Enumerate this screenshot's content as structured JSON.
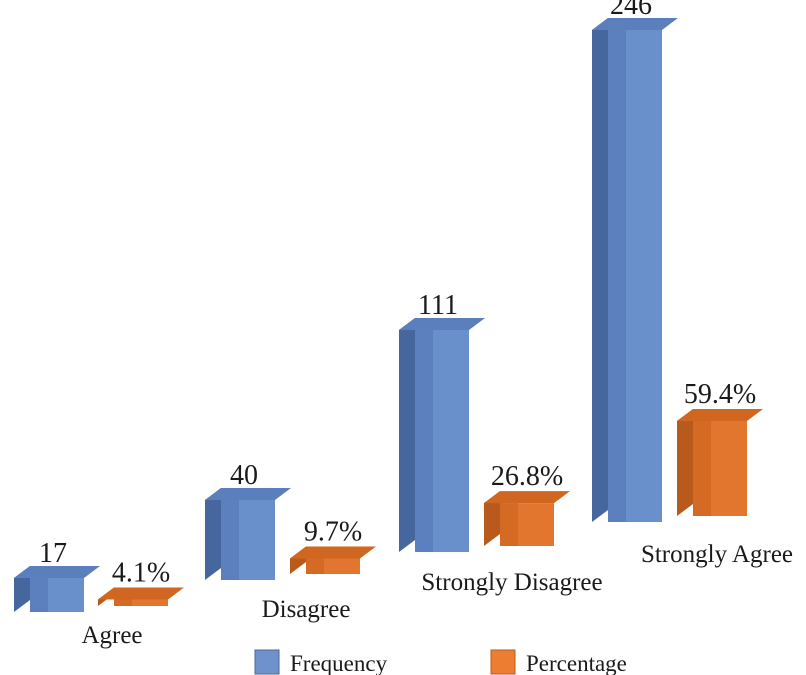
{
  "chart_data": {
    "type": "bar",
    "three_d": true,
    "categories": [
      "Agree",
      "Disagree",
      "Strongly Disagree",
      "Strongly Agree"
    ],
    "series": [
      {
        "name": "Frequency",
        "values": [
          17,
          40,
          111,
          246
        ],
        "value_labels": [
          "17",
          "40",
          "111",
          "246"
        ],
        "color": "#5b80bd"
      },
      {
        "name": "Percentage",
        "values": [
          4.1,
          9.7,
          26.8,
          59.4
        ],
        "value_labels": [
          "4.1%",
          "9.7%",
          "26.8%",
          "59.4%"
        ],
        "color": "#e0702a"
      }
    ],
    "title": "",
    "xlabel": "",
    "ylabel": "",
    "grid": false,
    "legend": "bottom"
  }
}
